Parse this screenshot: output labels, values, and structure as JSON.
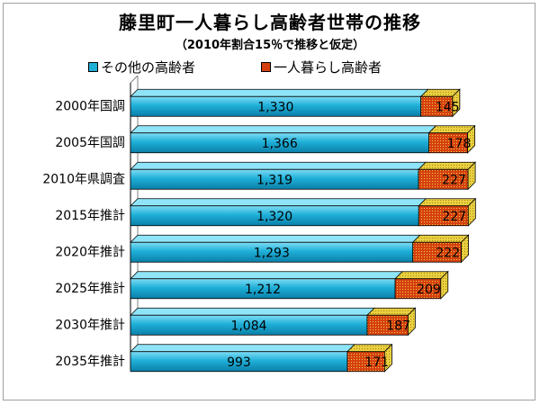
{
  "title": "藤里町一人暮らし高齢者世帯の推移",
  "subtitle": "（2010年割合15％で推移と仮定）",
  "colors": {
    "other": "#1fb0d8",
    "alone": "#d64010",
    "alone_light": "#e8d040"
  },
  "chart_data": {
    "type": "bar",
    "orientation": "horizontal",
    "stacked": true,
    "categories": [
      "2000年国調",
      "2005年国調",
      "2010年県調査",
      "2015年推計",
      "2020年推計",
      "2025年推計",
      "2030年推計",
      "2035年推計"
    ],
    "series": [
      {
        "name": "その他の高齢者",
        "values": [
          1330,
          1366,
          1319,
          1320,
          1293,
          1212,
          1084,
          993
        ]
      },
      {
        "name": "一人暮らし高齢者",
        "values": [
          145,
          178,
          227,
          227,
          222,
          209,
          187,
          171
        ]
      }
    ],
    "value_labels": [
      [
        "1,330",
        "1,366",
        "1,319",
        "1,320",
        "1,293",
        "1,212",
        "1,084",
        "993"
      ],
      [
        "145",
        "178",
        "227",
        "227",
        "222",
        "209",
        "187",
        "171"
      ]
    ],
    "xlim": [
      0,
      1760
    ],
    "grid": false,
    "legend": "top-left"
  }
}
